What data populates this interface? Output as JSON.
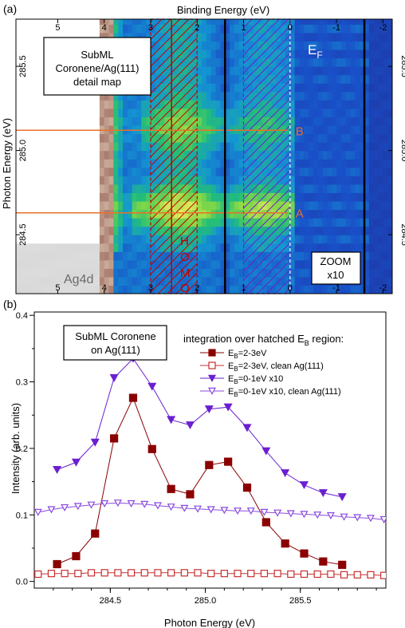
{
  "chart_data": [
    {
      "panel_label": "(a)",
      "type": "heatmap",
      "xlabel": "Binding Energy (eV)",
      "ylabel": "Photon Energy (eV)",
      "xlim": [
        5.9,
        -2.2
      ],
      "ylim": [
        284.15,
        285.78
      ],
      "x_ticks": [
        "5",
        "4",
        "3",
        "2",
        "1",
        "0",
        "-1",
        "-2"
      ],
      "x_tick_values": [
        5,
        4,
        3,
        2,
        1,
        0,
        -1,
        -2
      ],
      "y_ticks": [
        "284.5",
        "285.0",
        "285.5"
      ],
      "y_tick_values": [
        284.5,
        285.0,
        285.5
      ],
      "inset_title": [
        "SubML",
        "Coronene/Ag(111)",
        "detail map"
      ],
      "fermi_label": "E",
      "fermi_sub": "F",
      "ag4d_label": "Ag4d",
      "homo_letters": [
        "H",
        "O",
        "M",
        "O"
      ],
      "zoom_label": [
        "ZOOM",
        "x10"
      ],
      "marker_lines": [
        {
          "label": "A",
          "photon_energy": 284.63
        },
        {
          "label": "B",
          "photon_energy": 285.12
        }
      ],
      "hatched_regions": [
        {
          "from": 3.0,
          "to": 2.0,
          "color": "#c00000"
        },
        {
          "from": 1.0,
          "to": 0.0,
          "color": "#6a1fd0"
        }
      ],
      "zoom_region": [
        1.4,
        -1.6
      ],
      "colors": {
        "hatch_red": "#c00000",
        "hatch_purple": "#6a1fd0",
        "marker": "#e8702a",
        "background_blue": "#1f3aa8"
      }
    },
    {
      "panel_label": "(b)",
      "type": "line",
      "xlabel": "Photon Energy (eV)",
      "ylabel": "Intensity (arb. units)",
      "xlim": [
        284.1,
        285.95
      ],
      "ylim": [
        -0.01,
        0.405
      ],
      "x_ticks": [
        "284.5",
        "285.0",
        "285.5"
      ],
      "x_tick_values": [
        284.5,
        285.0,
        285.5
      ],
      "y_ticks": [
        "0.0",
        "0.1",
        "0.2",
        "0.3",
        "0.4"
      ],
      "y_tick_values": [
        0.0,
        0.1,
        0.2,
        0.3,
        0.4
      ],
      "inset_title": [
        "SubML Coronene",
        "on Ag(111)"
      ],
      "legend_title": "integration over hatched E",
      "legend_title_sub": "B",
      "legend_title_end": " region:",
      "legend_placement": "top-right",
      "series": [
        {
          "name_prefix": "E",
          "name_sub": "B",
          "name": "=2-3eV",
          "color": "#8b0000",
          "marker": "square-filled",
          "x": [
            284.22,
            284.32,
            284.42,
            284.52,
            284.62,
            284.72,
            284.82,
            284.92,
            285.02,
            285.12,
            285.22,
            285.32,
            285.42,
            285.52,
            285.62,
            285.72
          ],
          "y": [
            0.026,
            0.038,
            0.072,
            0.215,
            0.276,
            0.199,
            0.139,
            0.131,
            0.175,
            0.18,
            0.141,
            0.089,
            0.057,
            0.042,
            0.03,
            0.025
          ]
        },
        {
          "name_prefix": "E",
          "name_sub": "B",
          "name": "=2-3eV, clean Ag(111)",
          "color": "#c83030",
          "marker": "square-open",
          "x": [
            284.12,
            284.19,
            284.26,
            284.33,
            284.4,
            284.47,
            284.54,
            284.61,
            284.68,
            284.75,
            284.82,
            284.89,
            284.96,
            285.03,
            285.1,
            285.17,
            285.24,
            285.31,
            285.38,
            285.45,
            285.52,
            285.59,
            285.66,
            285.73,
            285.8,
            285.87,
            285.94
          ],
          "y": [
            0.011,
            0.012,
            0.012,
            0.012,
            0.013,
            0.013,
            0.013,
            0.013,
            0.013,
            0.013,
            0.013,
            0.013,
            0.013,
            0.012,
            0.012,
            0.012,
            0.012,
            0.012,
            0.012,
            0.011,
            0.011,
            0.011,
            0.011,
            0.01,
            0.01,
            0.01,
            0.009
          ]
        },
        {
          "name_prefix": "E",
          "name_sub": "B",
          "name": "=0-1eV x10",
          "color": "#6a1fd0",
          "marker": "triangle-down-filled",
          "x": [
            284.22,
            284.32,
            284.42,
            284.52,
            284.62,
            284.72,
            284.82,
            284.92,
            285.02,
            285.12,
            285.22,
            285.32,
            285.42,
            285.52,
            285.62,
            285.72
          ],
          "y": [
            0.168,
            0.179,
            0.209,
            0.306,
            0.335,
            0.293,
            0.243,
            0.235,
            0.259,
            0.262,
            0.231,
            0.196,
            0.163,
            0.145,
            0.133,
            0.127
          ]
        },
        {
          "name_prefix": "E",
          "name_sub": "B",
          "name": "=0-1eV x10, clean Ag(111)",
          "color": "#8a4ae0",
          "marker": "triangle-down-open",
          "x": [
            284.12,
            284.19,
            284.26,
            284.33,
            284.4,
            284.47,
            284.54,
            284.61,
            284.68,
            284.75,
            284.82,
            284.89,
            284.96,
            285.03,
            285.1,
            285.17,
            285.24,
            285.31,
            285.38,
            285.45,
            285.52,
            285.59,
            285.66,
            285.73,
            285.8,
            285.87,
            285.94
          ],
          "y": [
            0.104,
            0.108,
            0.111,
            0.113,
            0.115,
            0.117,
            0.118,
            0.117,
            0.116,
            0.114,
            0.112,
            0.11,
            0.109,
            0.108,
            0.107,
            0.106,
            0.106,
            0.104,
            0.103,
            0.102,
            0.101,
            0.1,
            0.099,
            0.097,
            0.096,
            0.095,
            0.093
          ]
        }
      ]
    }
  ]
}
